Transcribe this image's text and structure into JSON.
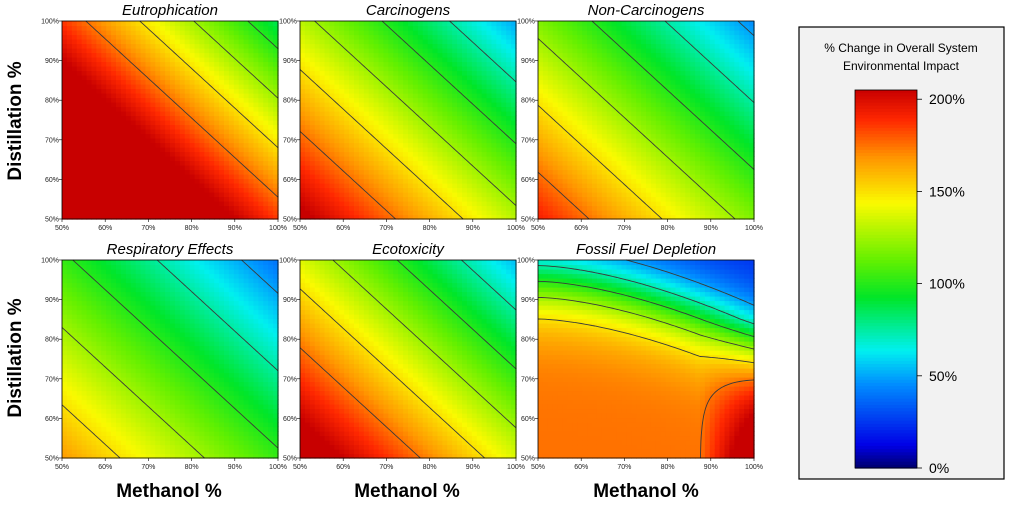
{
  "chart_data": {
    "type": "heatmap",
    "xlabel": "Methanol %",
    "ylabel": "Distillation %",
    "x_ticks": [
      "50%",
      "60%",
      "70%",
      "80%",
      "90%",
      "100%"
    ],
    "y_ticks": [
      "50%",
      "60%",
      "70%",
      "80%",
      "90%",
      "100%"
    ],
    "xlim": [
      50,
      100
    ],
    "ylim": [
      50,
      100
    ],
    "colorbar": {
      "title_line1": "% Change in Overall System",
      "title_line2": "Environmental Impact",
      "ticks": [
        "200%",
        "150%",
        "100%",
        "50%",
        "0%"
      ],
      "range": [
        0,
        205
      ]
    },
    "contour_levels": [
      25,
      50,
      75,
      100,
      125,
      150,
      175
    ],
    "panels": [
      {
        "title": "Eutrophication",
        "type": "power",
        "params": {
          "c": 100,
          "k": 1.86,
          "m": 50
        }
      },
      {
        "title": "Carcinogens",
        "type": "power",
        "params": {
          "c": 100,
          "k": 1.38,
          "m": 40
        }
      },
      {
        "title": "Non-Carcinogens",
        "type": "power",
        "params": {
          "c": 100,
          "k": 1.25,
          "m": 37
        }
      },
      {
        "title": "Respiratory Effects",
        "type": "power",
        "params": {
          "c": 100,
          "k": 1.05,
          "m": 32
        }
      },
      {
        "title": "Ecotoxicity",
        "type": "power",
        "params": {
          "c": 100,
          "k": 1.45,
          "m": 42
        }
      },
      {
        "title": "Fossil Fuel Depletion",
        "type": "fossil",
        "params": {
          "a": 20,
          "b": 155,
          "d": 310,
          "x0": 0.75,
          "w": 0.12
        }
      }
    ]
  }
}
